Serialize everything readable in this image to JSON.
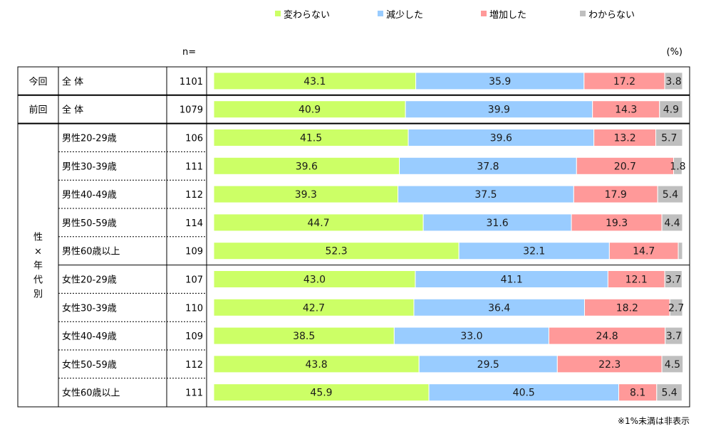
{
  "legend": [
    {
      "label": "変わらない",
      "color": "#ccff66"
    },
    {
      "label": "減少した",
      "color": "#99ccff"
    },
    {
      "label": "増加した",
      "color": "#ff9999"
    },
    {
      "label": "わからない",
      "color": "#bfbfbf"
    }
  ],
  "n_header": "n=",
  "pct_header": "(%)",
  "footnote": "※1%未満は非表示",
  "group_label": [
    "性",
    "×",
    "年",
    "代",
    "別"
  ],
  "chart_data": {
    "type": "bar",
    "orientation": "horizontal",
    "stacked": true,
    "xlim": [
      0,
      100
    ],
    "series_names": [
      "変わらない",
      "減少した",
      "増加した",
      "わからない"
    ],
    "rows": [
      {
        "group": "今回",
        "category": "全 体",
        "n": 1101,
        "values": [
          43.1,
          35.9,
          17.2,
          3.8
        ]
      },
      {
        "group": "前回",
        "category": "全 体",
        "n": 1079,
        "values": [
          40.9,
          39.9,
          14.3,
          4.9
        ]
      },
      {
        "group": "性×年代別",
        "category": "男性20-29歳",
        "n": 106,
        "values": [
          41.5,
          39.6,
          13.2,
          5.7
        ]
      },
      {
        "group": "性×年代別",
        "category": "男性30-39歳",
        "n": 111,
        "values": [
          39.6,
          37.8,
          20.7,
          1.8
        ]
      },
      {
        "group": "性×年代別",
        "category": "男性40-49歳",
        "n": 112,
        "values": [
          39.3,
          37.5,
          17.9,
          5.4
        ]
      },
      {
        "group": "性×年代別",
        "category": "男性50-59歳",
        "n": 114,
        "values": [
          44.7,
          31.6,
          19.3,
          4.4
        ]
      },
      {
        "group": "性×年代別",
        "category": "男性60歳以上",
        "n": 109,
        "values": [
          52.3,
          32.1,
          14.7,
          0.9
        ]
      },
      {
        "group": "性×年代別",
        "category": "女性20-29歳",
        "n": 107,
        "values": [
          43.0,
          41.1,
          12.1,
          3.7
        ]
      },
      {
        "group": "性×年代別",
        "category": "女性30-39歳",
        "n": 110,
        "values": [
          42.7,
          36.4,
          18.2,
          2.7
        ]
      },
      {
        "group": "性×年代別",
        "category": "女性40-49歳",
        "n": 109,
        "values": [
          38.5,
          33.0,
          24.8,
          3.7
        ]
      },
      {
        "group": "性×年代別",
        "category": "女性50-59歳",
        "n": 112,
        "values": [
          43.8,
          29.5,
          22.3,
          4.5
        ]
      },
      {
        "group": "性×年代別",
        "category": "女性60歳以上",
        "n": 111,
        "values": [
          45.9,
          40.5,
          8.1,
          5.4
        ]
      }
    ],
    "colors": [
      "#ccff66",
      "#99ccff",
      "#ff9999",
      "#bfbfbf"
    ],
    "hidden_label_threshold": 1
  }
}
